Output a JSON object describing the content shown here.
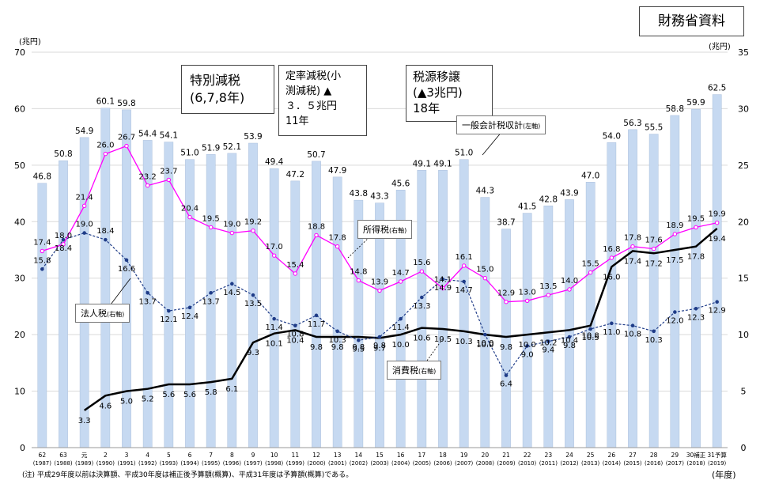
{
  "source": "財務省資料",
  "units": {
    "left": "(兆円)",
    "right": "(兆円)",
    "x": "(年度)"
  },
  "annotations": {
    "special_cut": [
      "特別減税",
      "(6,7,8年)"
    ],
    "fixed_rate_cut": [
      "定率減税(小",
      "渕減税) ▲",
      "３．５兆円",
      "11年"
    ],
    "tax_transfer": [
      "税源移譲",
      "(▲3兆円)",
      "18年"
    ]
  },
  "series_labels": {
    "general": {
      "text": "一般会計税収計",
      "axis": "(左軸)"
    },
    "income": {
      "text": "所得税",
      "axis": "(右軸)"
    },
    "corporate": {
      "text": "法人税",
      "axis": "(右軸)"
    },
    "consumption": {
      "text": "消費税",
      "axis": "(右軸)"
    }
  },
  "footnote": "(注) 平成29年度以前は決算額、平成30年度は補正後予算額(概算)、平成31年度は予算額(概算)である。",
  "chart_data": {
    "type": "bar",
    "categories": [
      {
        "era": "62",
        "year": "(1987)"
      },
      {
        "era": "63",
        "year": "(1988)"
      },
      {
        "era": "元",
        "year": "(1989)"
      },
      {
        "era": "2",
        "year": "(1990)"
      },
      {
        "era": "3",
        "year": "(1991)"
      },
      {
        "era": "4",
        "year": "(1992)"
      },
      {
        "era": "5",
        "year": "(1993)"
      },
      {
        "era": "6",
        "year": "(1994)"
      },
      {
        "era": "7",
        "year": "(1995)"
      },
      {
        "era": "8",
        "year": "(1996)"
      },
      {
        "era": "9",
        "year": "(1997)"
      },
      {
        "era": "10",
        "year": "(1998)"
      },
      {
        "era": "11",
        "year": "(1999)"
      },
      {
        "era": "12",
        "year": "(2000)"
      },
      {
        "era": "13",
        "year": "(2001)"
      },
      {
        "era": "14",
        "year": "(2002)"
      },
      {
        "era": "15",
        "year": "(2003)"
      },
      {
        "era": "16",
        "year": "(2004)"
      },
      {
        "era": "17",
        "year": "(2005)"
      },
      {
        "era": "18",
        "year": "(2006)"
      },
      {
        "era": "19",
        "year": "(2007)"
      },
      {
        "era": "20",
        "year": "(2008)"
      },
      {
        "era": "21",
        "year": "(2009)"
      },
      {
        "era": "22",
        "year": "(2010)"
      },
      {
        "era": "23",
        "year": "(2011)"
      },
      {
        "era": "24",
        "year": "(2012)"
      },
      {
        "era": "25",
        "year": "(2013)"
      },
      {
        "era": "26",
        "year": "(2014)"
      },
      {
        "era": "27",
        "year": "(2015)"
      },
      {
        "era": "28",
        "year": "(2016)"
      },
      {
        "era": "29",
        "year": "(2017)"
      },
      {
        "era": "30補正",
        "year": "(2018)"
      },
      {
        "era": "31予算",
        "year": "(2019)"
      }
    ],
    "left_axis": {
      "min": 0,
      "max": 70,
      "ticks": [
        0,
        10,
        20,
        30,
        40,
        50,
        60,
        70
      ]
    },
    "right_axis": {
      "min": 0,
      "max": 35,
      "ticks": [
        0,
        5,
        10,
        15,
        20,
        25,
        30,
        35
      ]
    },
    "series": [
      {
        "key": "general",
        "render": "bar",
        "axis": "left",
        "color": "#c6d9f1",
        "values": [
          46.8,
          50.8,
          54.9,
          60.1,
          59.8,
          54.4,
          54.1,
          51.0,
          51.9,
          52.1,
          53.9,
          49.4,
          47.2,
          50.7,
          47.9,
          43.8,
          43.3,
          45.6,
          49.1,
          49.1,
          51.0,
          44.3,
          38.7,
          41.5,
          42.8,
          43.9,
          47.0,
          54.0,
          56.3,
          55.5,
          58.8,
          59.9,
          62.5
        ]
      },
      {
        "key": "income",
        "render": "line",
        "axis": "right",
        "color": "#ff00ff",
        "values": [
          17.4,
          18.0,
          21.4,
          26.0,
          26.7,
          23.2,
          23.7,
          20.4,
          19.5,
          19.0,
          19.2,
          17.0,
          15.4,
          18.8,
          17.8,
          14.8,
          13.9,
          14.7,
          15.6,
          14.1,
          16.1,
          15.0,
          12.9,
          13.0,
          13.5,
          14.0,
          15.5,
          16.8,
          17.8,
          17.6,
          18.9,
          19.5,
          19.9
        ]
      },
      {
        "key": "corporate",
        "render": "dashed",
        "axis": "right",
        "color": "#1f3c88",
        "values": [
          15.8,
          18.4,
          19.0,
          18.4,
          16.6,
          13.7,
          12.1,
          12.4,
          13.7,
          14.5,
          13.5,
          11.4,
          10.8,
          11.7,
          10.3,
          9.5,
          9.8,
          11.4,
          13.3,
          14.9,
          14.7,
          10.0,
          6.4,
          9.0,
          9.4,
          9.8,
          10.5,
          11.0,
          10.8,
          10.3,
          12.0,
          12.3,
          12.9
        ]
      },
      {
        "key": "consumption",
        "render": "thick",
        "axis": "right",
        "color": "#000000",
        "values": [
          null,
          null,
          3.3,
          4.6,
          5.0,
          5.2,
          5.6,
          5.6,
          5.8,
          6.1,
          9.3,
          10.1,
          10.4,
          9.8,
          9.8,
          9.8,
          9.7,
          10.0,
          10.6,
          10.5,
          10.3,
          10.0,
          9.8,
          10.0,
          10.2,
          10.4,
          10.8,
          16.0,
          17.4,
          17.2,
          17.5,
          17.8,
          19.4
        ]
      }
    ]
  }
}
